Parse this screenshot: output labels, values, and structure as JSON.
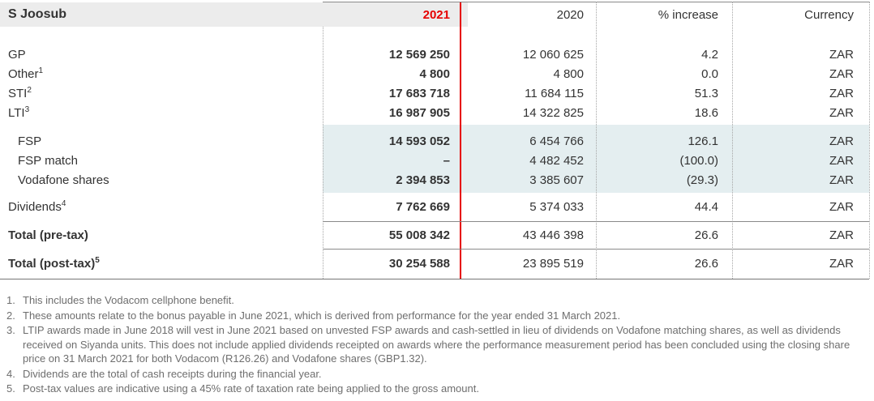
{
  "table": {
    "title": "S Joosub",
    "columns": {
      "y2021": "2021",
      "y2020": "2020",
      "increase": "% increase",
      "currency": "Currency"
    },
    "rows": [
      {
        "label": "GP",
        "sup": "",
        "v2021": "12 569 250",
        "v2020": "12 060 625",
        "pct": "4.2",
        "cur": "ZAR"
      },
      {
        "label": "Other",
        "sup": "1",
        "v2021": "4 800",
        "v2020": "4 800",
        "pct": "0.0",
        "cur": "ZAR"
      },
      {
        "label": "STI",
        "sup": "2",
        "v2021": "17 683 718",
        "v2020": "11 684 115",
        "pct": "51.3",
        "cur": "ZAR"
      },
      {
        "label": "LTI",
        "sup": "3",
        "v2021": "16 987 905",
        "v2020": "14 322 825",
        "pct": "18.6",
        "cur": "ZAR"
      },
      {
        "label": "FSP",
        "sup": "",
        "v2021": "14 593 052",
        "v2020": "6 454 766",
        "pct": "126.1",
        "cur": "ZAR"
      },
      {
        "label": "FSP match",
        "sup": "",
        "v2021": "–",
        "v2020": "4 482 452",
        "pct": "(100.0)",
        "cur": "ZAR"
      },
      {
        "label": "Vodafone shares",
        "sup": "",
        "v2021": "2 394 853",
        "v2020": "3 385 607",
        "pct": "(29.3)",
        "cur": "ZAR"
      },
      {
        "label": "Dividends",
        "sup": "4",
        "v2021": "7 762 669",
        "v2020": "5 374 033",
        "pct": "44.4",
        "cur": "ZAR"
      },
      {
        "label": "Total (pre-tax)",
        "sup": "",
        "v2021": "55 008 342",
        "v2020": "43 446 398",
        "pct": "26.6",
        "cur": "ZAR"
      },
      {
        "label": "Total (post-tax)",
        "sup": "5",
        "v2021": "30 254 588",
        "v2020": "23 895 519",
        "pct": "26.6",
        "cur": "ZAR"
      }
    ]
  },
  "footnotes": [
    {
      "num": "1.",
      "text": "This includes the Vodacom cellphone benefit."
    },
    {
      "num": "2.",
      "text": "These amounts relate to the bonus payable in June 2021, which is derived from performance for the year ended 31 March 2021."
    },
    {
      "num": "3.",
      "text": "LTIP awards made in June 2018 will vest in June 2021 based on unvested FSP awards and cash-settled in lieu of dividends on Vodafone matching shares, as well as dividends received on Siyanda units. This does not include applied dividends receipted on awards where the performance measurement period has been concluded using the closing share price on 31 March 2021 for both Vodacom (R126.26) and Vodafone shares (GBP1.32)."
    },
    {
      "num": "4.",
      "text": "Dividends are the total of cash receipts during the financial year."
    },
    {
      "num": "5.",
      "text": "Post-tax values are indicative using a 45% rate of taxation rate being applied to the gross amount."
    }
  ],
  "colors": {
    "accent_red": "#e60000",
    "header_band_gray": "#ececec",
    "highlight_band_blue": "#e4eef0",
    "body_text": "#333333",
    "footnote_text": "#6e6e6e",
    "rule_gray": "#8a8a8a"
  }
}
